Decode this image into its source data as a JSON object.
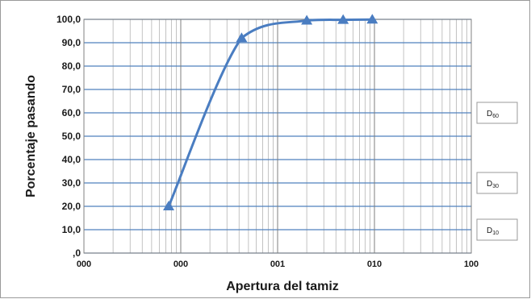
{
  "chart_data": {
    "type": "line",
    "xlabel": "Apertura del tamiz",
    "ylabel": "Porcentaje pasando",
    "x_scale": "log",
    "xlim": [
      0.01,
      100
    ],
    "ylim": [
      0,
      100
    ],
    "x_ticks": [
      0.01,
      0.1,
      1,
      10,
      100
    ],
    "x_tick_labels": [
      "000",
      "000",
      "001",
      "010",
      "100"
    ],
    "y_ticks": [
      0,
      10,
      20,
      30,
      40,
      50,
      60,
      70,
      80,
      90,
      100
    ],
    "y_tick_labels": [
      ",0",
      "10,0",
      "20,0",
      "30,0",
      "40,0",
      "50,0",
      "60,0",
      "70,0",
      "80,0",
      "90,0",
      "100,0"
    ],
    "grid": true,
    "series": [
      {
        "color": "#4a7dc1",
        "points": [
          {
            "x": 0.075,
            "y": 20.0
          },
          {
            "x": 0.425,
            "y": 92.0
          },
          {
            "x": 2.0,
            "y": 99.5
          },
          {
            "x": 4.75,
            "y": 99.8
          },
          {
            "x": 9.5,
            "y": 99.9
          }
        ]
      }
    ],
    "reference_labels": [
      {
        "base": "D",
        "sub": "60"
      },
      {
        "base": "D",
        "sub": "30"
      },
      {
        "base": "D",
        "sub": "10"
      }
    ]
  }
}
